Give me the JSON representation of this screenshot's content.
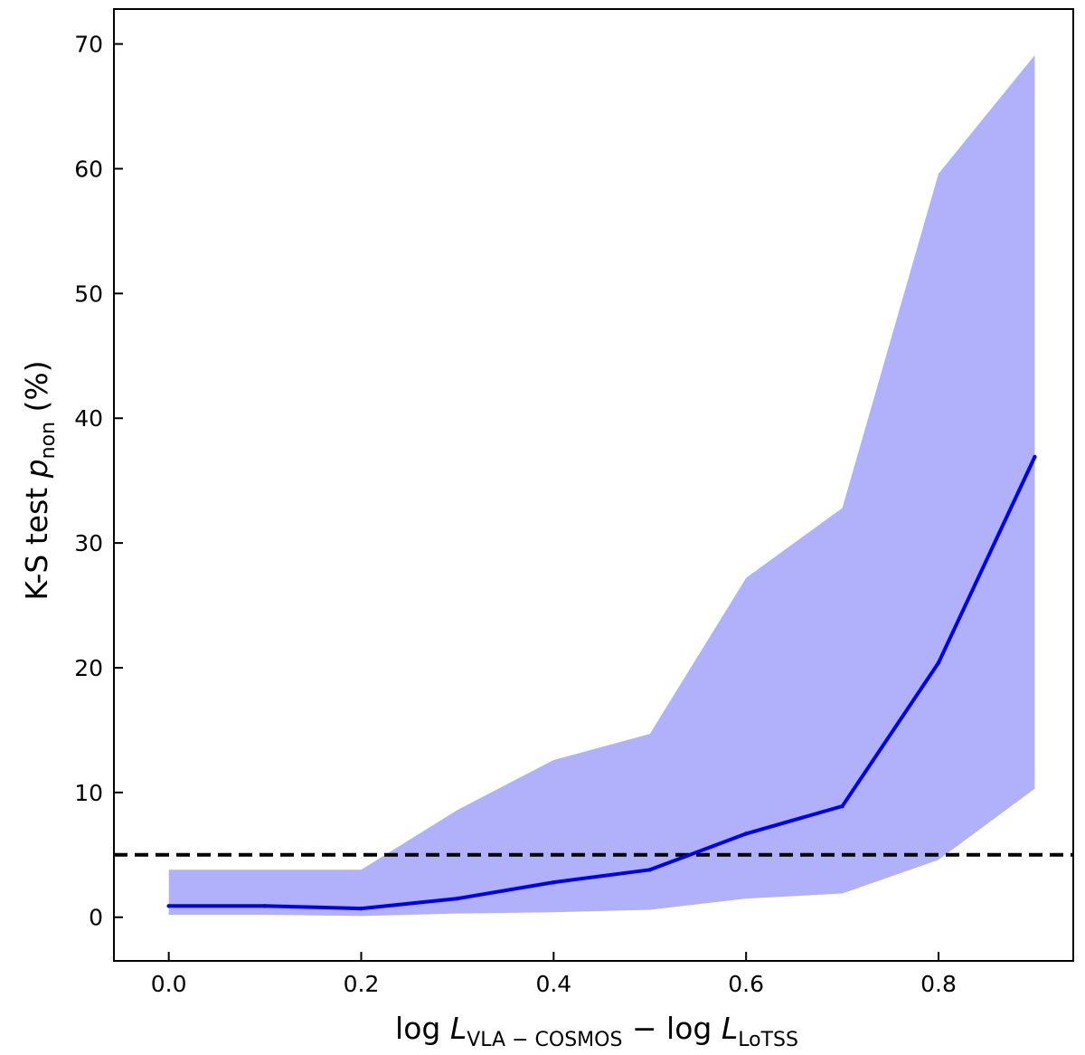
{
  "chart_data": {
    "type": "line",
    "xlabel": {
      "pre": "log ",
      "var1": "L",
      "sub1": "VLA − COSMOS",
      "mid": " − log ",
      "var2": "L",
      "sub2": "LoTSS"
    },
    "ylabel": {
      "pre": "K-S test ",
      "var": "p",
      "sub": "non",
      "post": " (%)"
    },
    "xlim": [
      -0.057,
      0.94
    ],
    "ylim": [
      -3.5,
      72.8
    ],
    "xticks": [
      0.0,
      0.2,
      0.4,
      0.6,
      0.8
    ],
    "xtick_labels": [
      "0.0",
      "0.2",
      "0.4",
      "0.6",
      "0.8"
    ],
    "yticks": [
      0,
      10,
      20,
      30,
      40,
      50,
      60,
      70
    ],
    "ytick_labels": [
      "0",
      "10",
      "20",
      "30",
      "40",
      "50",
      "60",
      "70"
    ],
    "x": [
      0.0,
      0.1,
      0.2,
      0.3,
      0.4,
      0.5,
      0.6,
      0.7,
      0.8,
      0.9
    ],
    "series": [
      {
        "values": [
          0.9,
          0.9,
          0.7,
          1.5,
          2.8,
          3.8,
          6.7,
          8.9,
          20.4,
          36.9
        ],
        "color": "#0000ee"
      }
    ],
    "band": {
      "lower": [
        0.2,
        0.2,
        0.1,
        0.3,
        0.4,
        0.6,
        1.5,
        1.9,
        4.6,
        10.3
      ],
      "upper": [
        3.8,
        3.8,
        3.8,
        8.6,
        12.6,
        14.7,
        27.2,
        32.8,
        59.6,
        69.1
      ],
      "color": "#b0b0fb"
    },
    "reference_line": {
      "y": 5,
      "style": "dashed",
      "color": "#000000"
    },
    "grid": false,
    "legend": "none"
  }
}
